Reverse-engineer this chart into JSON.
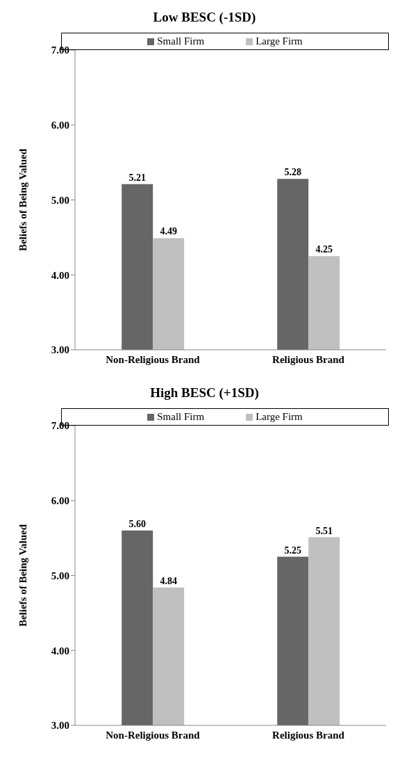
{
  "chart_data": [
    {
      "type": "bar",
      "title": "Low BESC (-1SD)",
      "ylabel": "Beliefs of Being Valued",
      "categories": [
        "Non-Religious Brand",
        "Religious Brand"
      ],
      "series": [
        {
          "name": "Small Firm",
          "color": "#666666",
          "values": [
            5.21,
            5.28
          ],
          "value_labels": [
            "5.21",
            "5.28"
          ]
        },
        {
          "name": "Large Firm",
          "color": "#c0c0c0",
          "values": [
            4.49,
            4.25
          ],
          "value_labels": [
            "4.49",
            "4.25"
          ]
        }
      ],
      "ylim": [
        3,
        7
      ],
      "yticks": [
        {
          "value": 3,
          "label": "3.00"
        },
        {
          "value": 4,
          "label": "4.00"
        },
        {
          "value": 5,
          "label": "5.00"
        },
        {
          "value": 6,
          "label": "6.00"
        },
        {
          "value": 7,
          "label": "7.00"
        }
      ],
      "legend": "top",
      "grid": false
    },
    {
      "type": "bar",
      "title": "High BESC (+1SD)",
      "ylabel": "Beliefs of Being Valued",
      "categories": [
        "Non-Religious Brand",
        "Religious Brand"
      ],
      "series": [
        {
          "name": "Small Firm",
          "color": "#666666",
          "values": [
            5.6,
            5.25
          ],
          "value_labels": [
            "5.60",
            "5.25"
          ]
        },
        {
          "name": "Large Firm",
          "color": "#c0c0c0",
          "values": [
            4.84,
            5.51
          ],
          "value_labels": [
            "4.84",
            "5.51"
          ]
        }
      ],
      "ylim": [
        3,
        7
      ],
      "yticks": [
        {
          "value": 3,
          "label": "3.00"
        },
        {
          "value": 4,
          "label": "4.00"
        },
        {
          "value": 5,
          "label": "5.00"
        },
        {
          "value": 6,
          "label": "6.00"
        },
        {
          "value": 7,
          "label": "7.00"
        }
      ],
      "legend": "top",
      "grid": false
    }
  ]
}
